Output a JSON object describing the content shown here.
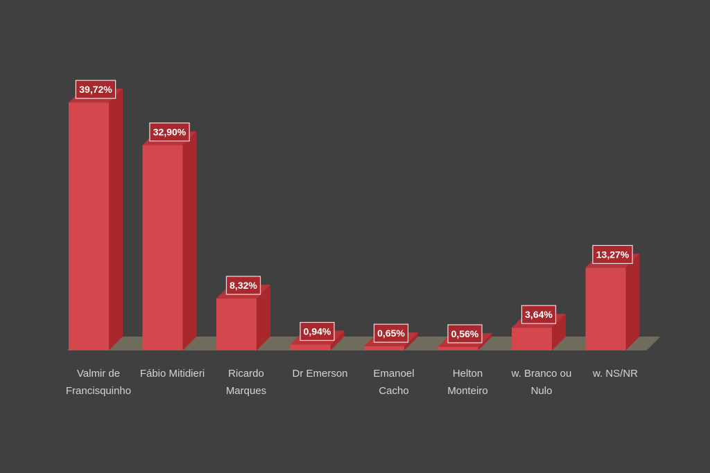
{
  "colors": {
    "background": "#404040",
    "bar_front": "#d4474c",
    "bar_side": "#a8282e",
    "bar_top": "#b8333a",
    "floor": "#6f6c5c",
    "label_box": "#a8282e",
    "label_border": "#f2dede"
  },
  "chart_data": {
    "type": "bar",
    "categories": [
      [
        "Valmir de",
        "Francisquinho"
      ],
      [
        "Fábio Mitidieri"
      ],
      [
        "Ricardo",
        "Marques"
      ],
      [
        "Dr Emerson"
      ],
      [
        "Emanoel",
        "Cacho"
      ],
      [
        "Helton",
        "Monteiro"
      ],
      [
        "w. Branco ou",
        "Nulo"
      ],
      [
        "w. NS/NR"
      ]
    ],
    "values": [
      39.72,
      32.9,
      8.32,
      0.94,
      0.65,
      0.56,
      3.64,
      13.27
    ],
    "value_labels": [
      "39,72%",
      "32,90%",
      "8,32%",
      "0,94%",
      "0,65%",
      "0,56%",
      "3,64%",
      "13,27%"
    ],
    "ylim": [
      0,
      40
    ],
    "unit": "%",
    "grid": false,
    "legend": "none",
    "title": "",
    "xlabel": "",
    "ylabel": "",
    "style": "3d-bar"
  }
}
